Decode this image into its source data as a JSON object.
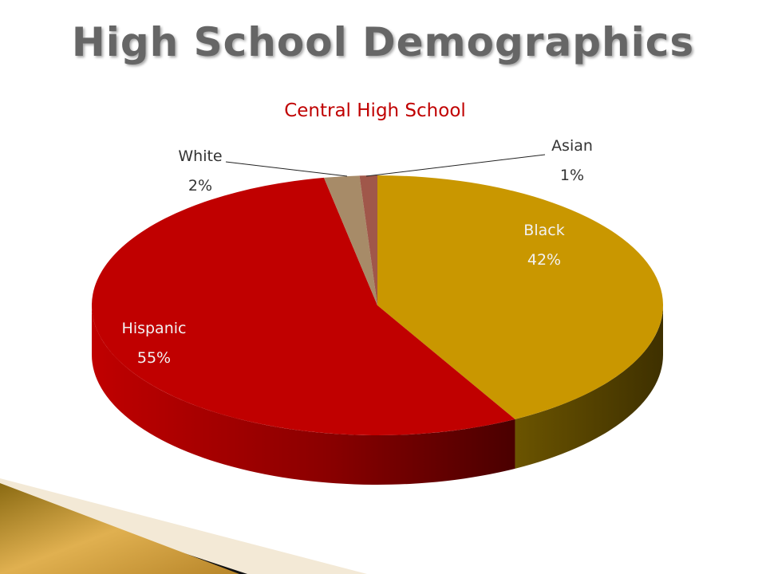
{
  "slide": {
    "title": "High School Demographics"
  },
  "chart_data": {
    "type": "pie",
    "style": "3d",
    "title": "Central High School",
    "categories": [
      "Black",
      "Hispanic",
      "White",
      "Asian"
    ],
    "values": [
      42,
      55,
      2,
      1
    ],
    "value_labels": [
      "42%",
      "55%",
      "2%",
      "1%"
    ],
    "colors": [
      "#C99700",
      "#C00000",
      "#A78B68",
      "#A0574A"
    ],
    "legend": "none",
    "data_labels": "category and percentage"
  },
  "colors": {
    "title_text": "#666666",
    "chart_title": "#C00000",
    "label_on_slice": "#F2F2F2",
    "label_outside": "#333333"
  }
}
